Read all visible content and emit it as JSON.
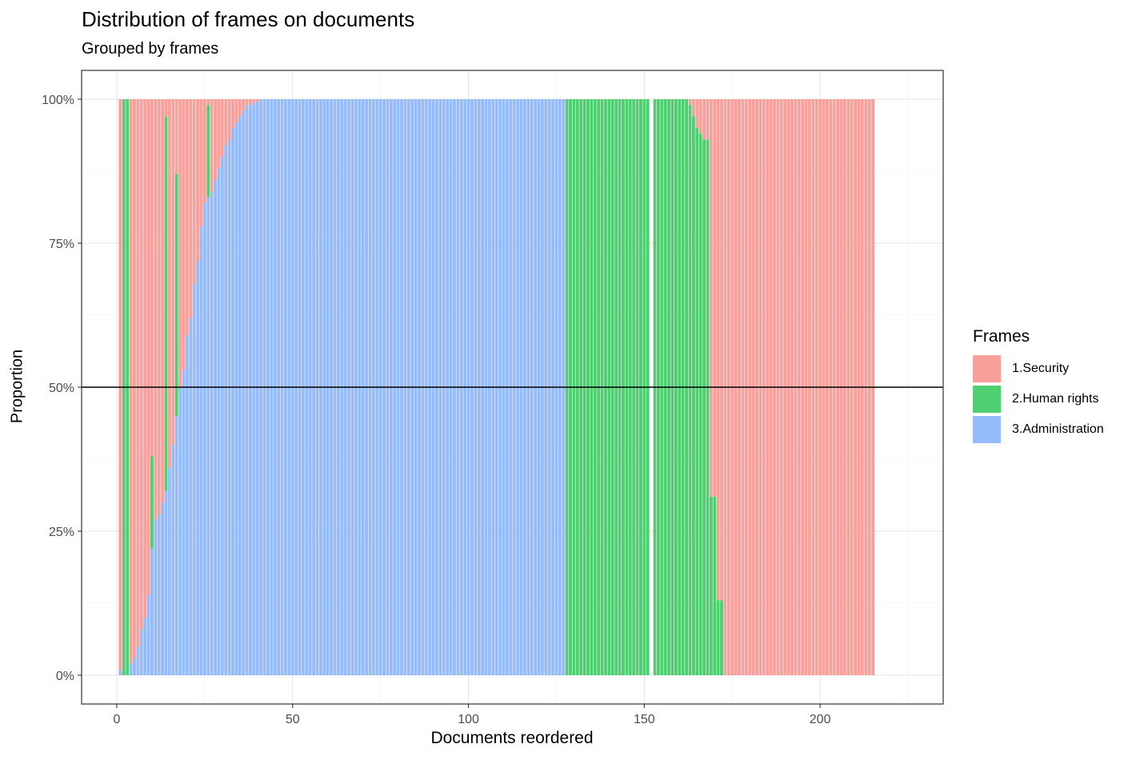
{
  "title": "Distribution of frames on documents",
  "subtitle": "Grouped by frames",
  "legend": {
    "title": "Frames",
    "items": [
      {
        "label": "1.Security",
        "color": "#F8A19C"
      },
      {
        "label": "2.Human rights",
        "color": "#4FCE72"
      },
      {
        "label": "3.Administration",
        "color": "#96BBFB"
      }
    ]
  },
  "chart_data": {
    "type": "bar",
    "stacked": "proportion",
    "title": "Distribution of frames on documents",
    "subtitle": "Grouped by frames",
    "xlabel": "Documents reordered",
    "ylabel": "Proportion",
    "xlim": [
      -10,
      235
    ],
    "ylim": [
      -0.05,
      1.05
    ],
    "x_ticks": [
      0,
      50,
      100,
      150,
      200
    ],
    "y_ticks": [
      0,
      0.25,
      0.5,
      0.75,
      1.0
    ],
    "y_tick_labels": [
      "0%",
      "25%",
      "50%",
      "75%",
      "100%"
    ],
    "reference_line_y": 0.5,
    "grid": true,
    "legend_position": "right",
    "series_order": [
      "3.Administration",
      "2.Human rights",
      "1.Security"
    ],
    "colors": {
      "1.Security": "#F8A19C",
      "2.Human rights": "#4FCE72",
      "3.Administration": "#96BBFB"
    },
    "x": [
      1,
      2,
      3,
      4,
      5,
      6,
      7,
      8,
      9,
      10,
      11,
      12,
      13,
      14,
      15,
      16,
      17,
      18,
      19,
      20,
      21,
      22,
      23,
      24,
      25,
      26,
      27,
      28,
      29,
      30,
      31,
      32,
      33,
      34,
      35,
      36,
      37,
      38,
      39,
      40,
      41,
      42,
      43,
      44,
      45,
      46,
      47,
      48,
      49,
      50,
      51,
      52,
      53,
      54,
      55,
      56,
      57,
      58,
      59,
      60,
      61,
      62,
      63,
      64,
      65,
      66,
      67,
      68,
      69,
      70,
      71,
      72,
      73,
      74,
      75,
      76,
      77,
      78,
      79,
      80,
      81,
      82,
      83,
      84,
      85,
      86,
      87,
      88,
      89,
      90,
      91,
      92,
      93,
      94,
      95,
      96,
      97,
      98,
      99,
      100,
      101,
      102,
      103,
      104,
      105,
      106,
      107,
      108,
      109,
      110,
      111,
      112,
      113,
      114,
      115,
      116,
      117,
      118,
      119,
      120,
      121,
      122,
      123,
      124,
      125,
      126,
      127,
      128,
      129,
      130,
      131,
      132,
      133,
      134,
      135,
      136,
      137,
      138,
      139,
      140,
      141,
      142,
      143,
      144,
      145,
      146,
      147,
      148,
      149,
      150,
      151,
      153,
      154,
      155,
      156,
      157,
      158,
      159,
      160,
      161,
      162,
      163,
      164,
      165,
      166,
      167,
      168,
      169,
      170,
      171,
      172,
      173,
      174,
      175,
      176,
      177,
      178,
      179,
      180,
      181,
      182,
      183,
      184,
      185,
      186,
      187,
      188,
      189,
      190,
      191,
      192,
      193,
      194,
      195,
      196,
      197,
      198,
      199,
      200,
      201,
      202,
      203,
      204,
      205,
      206,
      207,
      208,
      209,
      210,
      211,
      212,
      213,
      214,
      215,
      216,
      217,
      218,
      219,
      220,
      221,
      222,
      223
    ],
    "administration": [
      0.01,
      0,
      0,
      0.02,
      0.03,
      0.05,
      0.08,
      0.1,
      0.14,
      0.22,
      0.27,
      0.28,
      0.3,
      0.32,
      0.36,
      0.4,
      0.45,
      0.5,
      0.53,
      0.59,
      0.62,
      0.68,
      0.72,
      0.78,
      0.82,
      0.83,
      0.84,
      0.86,
      0.88,
      0.9,
      0.92,
      0.93,
      0.95,
      0.96,
      0.97,
      0.98,
      0.99,
      0.99,
      0.995,
      0.995,
      1,
      1,
      1,
      1,
      1,
      1,
      1,
      1,
      1,
      1,
      1,
      1,
      1,
      1,
      1,
      1,
      1,
      1,
      1,
      1,
      1,
      1,
      1,
      1,
      1,
      1,
      1,
      1,
      1,
      1,
      1,
      1,
      1,
      1,
      1,
      1,
      1,
      1,
      1,
      1,
      1,
      1,
      1,
      1,
      1,
      1,
      1,
      1,
      1,
      1,
      1,
      1,
      1,
      1,
      1,
      1,
      1,
      1,
      1,
      1,
      1,
      1,
      1,
      1,
      1,
      1,
      1,
      1,
      1,
      1,
      1,
      1,
      1,
      1,
      1,
      1,
      1,
      1,
      1,
      1,
      1,
      1,
      1,
      1,
      1,
      1,
      1,
      0,
      0,
      0,
      0,
      0,
      0,
      0,
      0,
      0,
      0,
      0,
      0,
      0,
      0,
      0,
      0,
      0,
      0,
      0,
      0,
      0,
      0,
      0,
      0,
      0,
      0,
      0,
      0,
      0,
      0,
      0,
      0,
      0,
      0,
      0,
      0,
      0,
      0,
      0,
      0,
      0,
      0,
      0,
      0,
      0,
      0,
      0,
      0,
      0,
      0,
      0,
      0,
      0,
      0,
      0,
      0,
      0,
      0,
      0,
      0,
      0,
      0,
      0,
      0,
      0,
      0,
      0,
      0,
      0,
      0,
      0,
      0,
      0,
      0,
      0,
      0,
      0,
      0,
      0,
      0,
      0,
      0,
      0,
      0,
      0,
      0,
      0,
      0,
      0,
      0,
      0,
      0,
      0,
      0,
      0,
      0,
      0,
      0,
      0
    ],
    "human_rights": [
      0,
      1,
      1,
      0,
      0,
      0,
      0,
      0,
      0,
      0.16,
      0,
      0,
      0,
      0.65,
      0,
      0,
      0.42,
      0,
      0,
      0,
      0,
      0,
      0,
      0,
      0,
      0.16,
      0,
      0,
      0,
      0,
      0,
      0,
      0,
      0,
      0,
      0,
      0,
      0,
      0,
      0,
      0,
      0,
      0,
      0,
      0,
      0,
      0,
      0,
      0,
      0,
      0,
      0,
      0,
      0,
      0,
      0,
      0,
      0,
      0,
      0,
      0,
      0,
      0,
      0,
      0,
      0,
      0,
      0,
      0,
      0,
      0,
      0,
      0,
      0,
      0,
      0,
      0,
      0,
      0,
      0,
      0,
      0,
      0,
      0,
      0,
      0,
      0,
      0,
      0,
      0,
      0,
      0,
      0,
      0,
      0,
      0,
      0,
      0,
      0,
      0,
      0,
      0,
      0,
      0,
      0,
      0,
      0,
      0,
      0,
      0,
      0,
      0,
      0,
      0,
      0,
      0,
      0,
      0,
      0,
      0,
      0,
      0,
      0,
      0,
      0,
      0,
      0,
      1,
      1,
      1,
      1,
      1,
      1,
      1,
      1,
      1,
      1,
      1,
      1,
      1,
      1,
      1,
      1,
      1,
      1,
      1,
      1,
      1,
      1,
      1,
      1,
      1,
      1,
      1,
      1,
      1,
      1,
      1,
      1,
      1,
      1,
      0.99,
      0.97,
      0.95,
      0.94,
      0.93,
      0.93,
      0.31,
      0.31,
      0.13,
      0.13,
      0,
      0,
      0,
      0,
      0,
      0,
      0,
      0,
      0,
      0,
      0,
      0,
      0,
      0,
      0,
      0,
      0,
      0,
      0,
      0,
      0,
      0,
      0,
      0,
      0,
      0,
      0,
      0,
      0,
      0,
      0,
      0,
      0,
      0,
      0,
      0,
      0,
      0,
      0,
      0,
      0,
      0,
      0
    ]
  }
}
